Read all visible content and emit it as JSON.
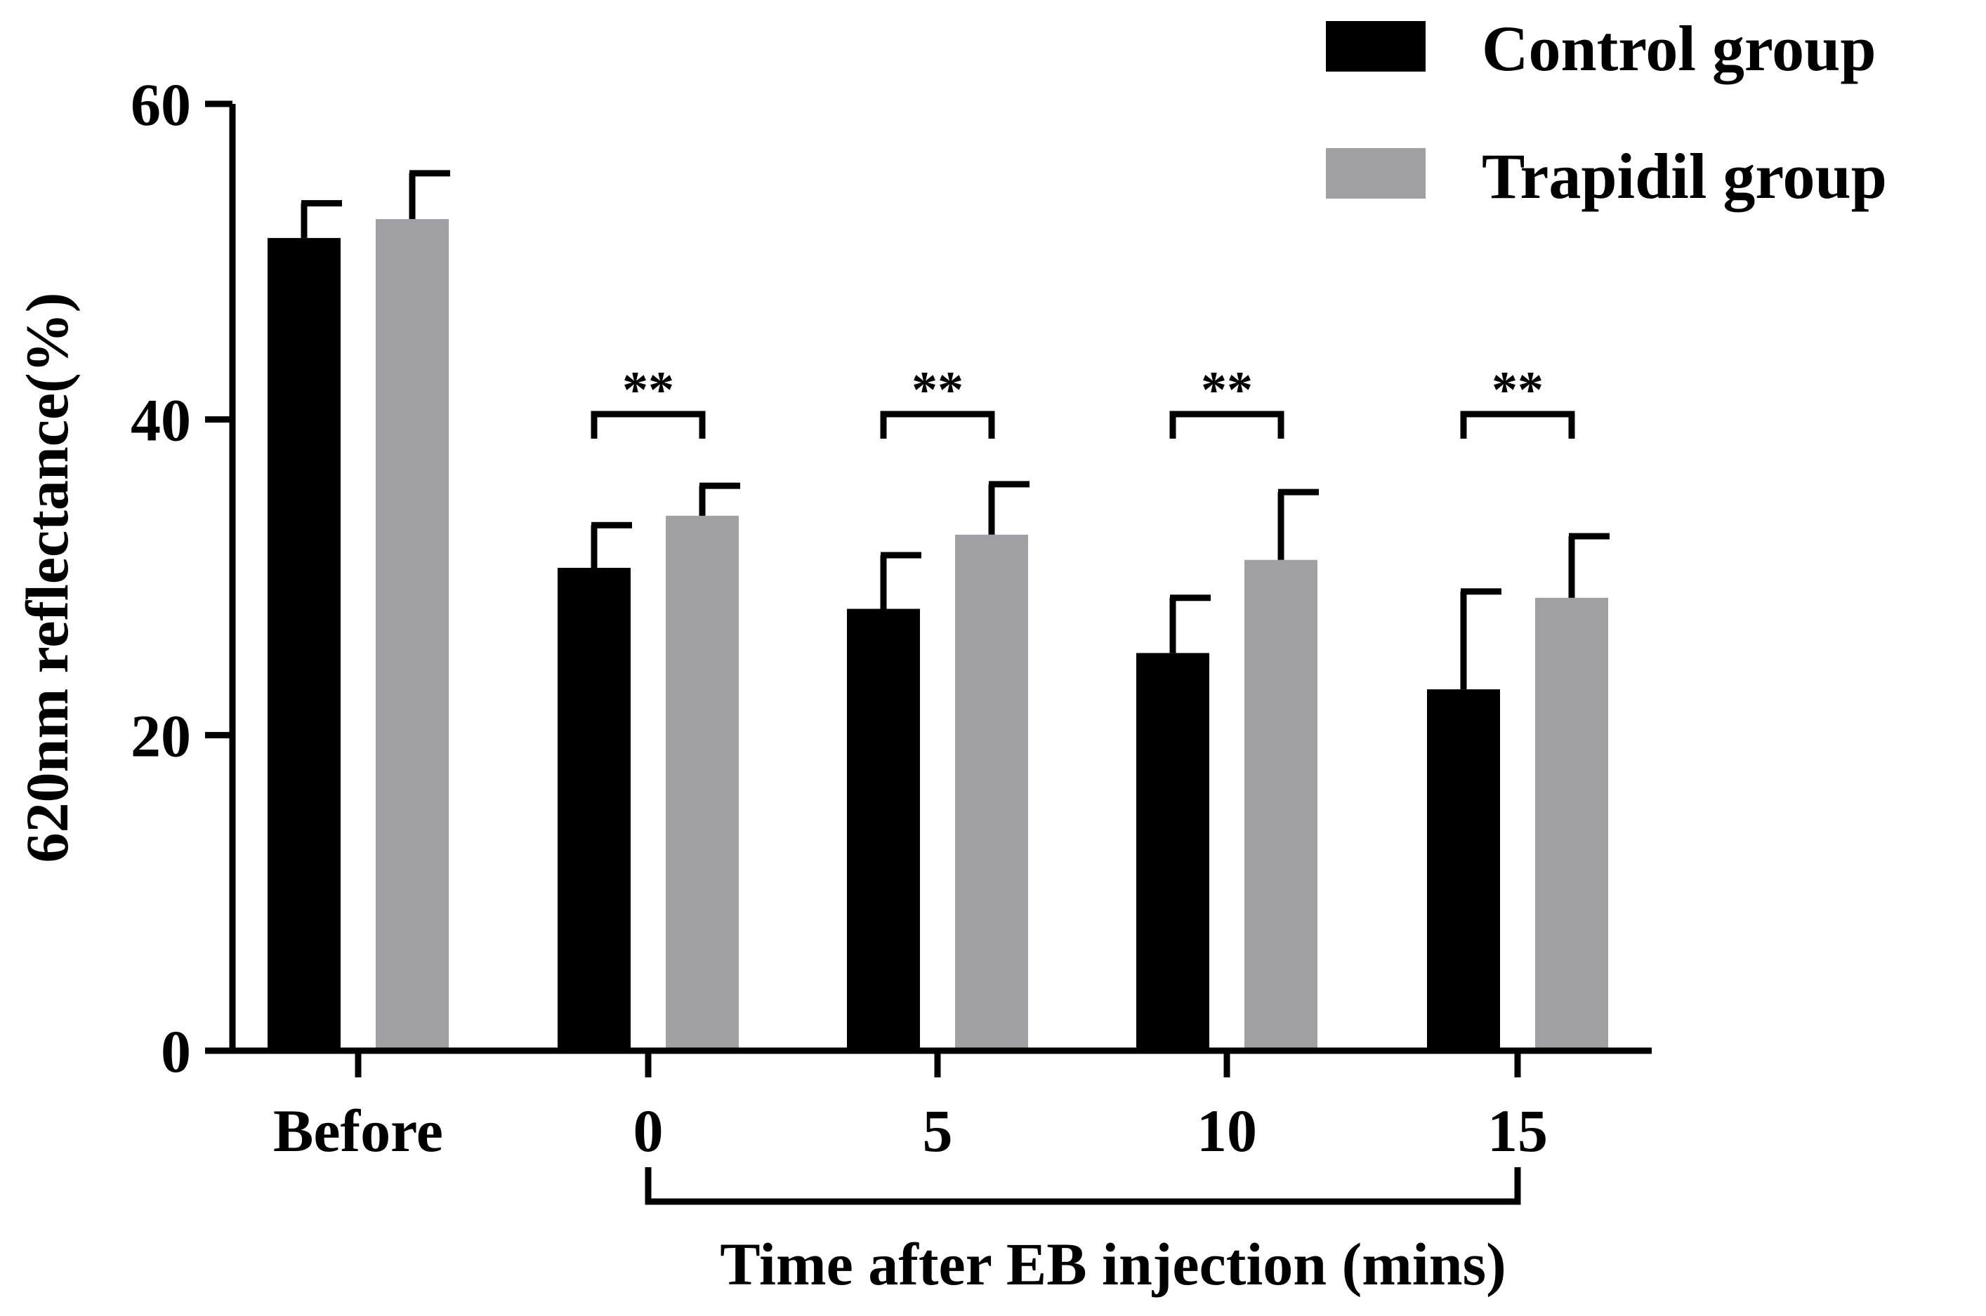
{
  "chart_data": {
    "type": "bar",
    "categories": [
      "Before",
      "0",
      "5",
      "10",
      "15"
    ],
    "series": [
      {
        "name": "Control group",
        "color": "#000000",
        "values": [
          51.5,
          30.6,
          28.0,
          25.2,
          22.9
        ],
        "errors": [
          2.2,
          2.7,
          3.4,
          3.5,
          6.2
        ]
      },
      {
        "name": "Trapidil group",
        "color": "#a0a0a4",
        "values": [
          52.7,
          33.9,
          32.7,
          31.1,
          28.7
        ],
        "errors": [
          2.9,
          1.9,
          3.2,
          4.3,
          3.9
        ]
      }
    ],
    "ylabel": "620nm reflectance(%)",
    "xlabel": "Time after EB injection (mins)",
    "ylim": [
      0,
      60
    ],
    "yticks": [
      0,
      20,
      40,
      60
    ],
    "significance": [
      {
        "category": "0",
        "label": "**"
      },
      {
        "category": "5",
        "label": "**"
      },
      {
        "category": "10",
        "label": "**"
      },
      {
        "category": "15",
        "label": "**"
      }
    ],
    "time_bracket": {
      "from": "0",
      "to": "15"
    },
    "legend_position": "top-right"
  }
}
